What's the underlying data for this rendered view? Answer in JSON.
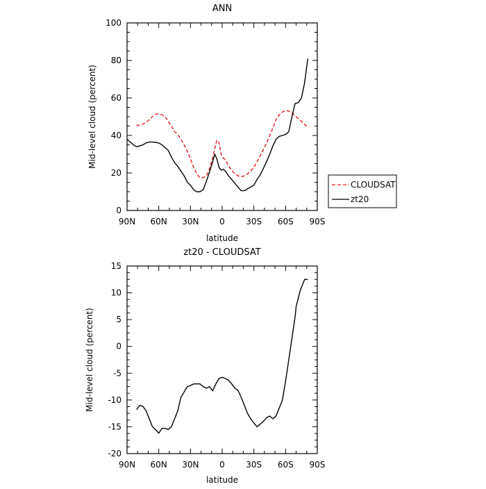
{
  "chart_data": [
    {
      "type": "line",
      "title": "ANN",
      "xlabel": "latitude",
      "ylabel": "Mid-level cloud (percent)",
      "xlim": [
        90,
        -90
      ],
      "ylim": [
        0,
        100
      ],
      "x_ticks": [
        90,
        60,
        30,
        0,
        -30,
        -60,
        -90
      ],
      "x_tick_labels": [
        "90N",
        "60N",
        "30N",
        "0",
        "30S",
        "60S",
        "90S"
      ],
      "y_ticks": [
        0,
        20,
        40,
        60,
        80,
        100
      ],
      "y_tick_labels": [
        "0",
        "20",
        "40",
        "60",
        "80",
        "100"
      ],
      "legend": {
        "placement": "right",
        "entries": [
          {
            "label": "CLOUDSAT",
            "color": "#e31a1c",
            "dash": "dashed"
          },
          {
            "label": "zt20",
            "color": "#000000",
            "dash": "solid"
          }
        ]
      },
      "series": [
        {
          "name": "CLOUDSAT",
          "color": "#e31a1c",
          "dash": "dashed",
          "x": [
            81,
            78,
            75,
            72,
            69,
            66,
            63,
            60,
            57,
            54,
            51,
            48,
            45,
            42,
            39,
            36,
            33,
            30,
            27,
            24,
            21,
            18,
            15,
            12,
            9,
            7,
            5,
            3,
            1,
            -1,
            -3,
            -5,
            -7,
            -9,
            -12,
            -15,
            -18,
            -21,
            -24,
            -27,
            -30,
            -33,
            -36,
            -39,
            -42,
            -45,
            -48,
            -51,
            -54,
            -57,
            -60,
            -63,
            -66,
            -69,
            -72,
            -75,
            -78,
            -81
          ],
          "y": [
            45.5,
            45.3,
            46,
            47,
            48.5,
            50,
            51.3,
            51.5,
            51,
            50,
            47.5,
            45,
            42,
            40.5,
            38,
            35,
            31.5,
            27.5,
            23,
            19.5,
            17.5,
            17.5,
            18.5,
            22,
            28,
            33,
            37.5,
            36.5,
            30,
            28,
            27,
            25,
            23,
            21.5,
            19.5,
            18.5,
            18,
            18.5,
            19.5,
            21,
            23,
            26,
            29,
            32.5,
            36,
            40,
            44,
            48.5,
            51,
            52.5,
            53.3,
            53,
            52,
            50.5,
            49,
            47.5,
            46,
            44
          ]
        },
        {
          "name": "zt20",
          "color": "#000000",
          "dash": "solid",
          "x": [
            90,
            87,
            84,
            81,
            78,
            75,
            72,
            69,
            66,
            63,
            60,
            57,
            54,
            51,
            48,
            45,
            42,
            39,
            36,
            33,
            30,
            27,
            24,
            21,
            18,
            15,
            12,
            9,
            7,
            5,
            3,
            1,
            -1,
            -3,
            -6,
            -9,
            -12,
            -15,
            -18,
            -21,
            -24,
            -27,
            -30,
            -33,
            -36,
            -39,
            -42,
            -45,
            -48,
            -51,
            -54,
            -57,
            -60,
            -63,
            -66,
            -69,
            -72,
            -75,
            -78,
            -81
          ],
          "y": [
            38,
            36.5,
            35,
            34,
            34.5,
            35,
            36,
            36.5,
            36.5,
            36.3,
            36,
            35,
            33.5,
            32,
            28.5,
            25.5,
            23.5,
            21,
            18.5,
            15,
            13.5,
            11,
            10,
            10,
            11,
            15.5,
            20.5,
            26,
            30,
            27.5,
            23,
            21.5,
            22,
            21,
            18.5,
            16.5,
            14.5,
            12.5,
            10.5,
            10.5,
            11.5,
            12.5,
            13.5,
            16.5,
            19,
            22.5,
            26,
            30,
            34.5,
            38,
            39.5,
            40,
            40.5,
            42,
            50,
            57,
            57.5,
            60,
            68,
            81
          ]
        }
      ]
    },
    {
      "type": "line",
      "title": "zt20 - CLOUDSAT",
      "xlabel": "latitude",
      "ylabel": "Mid-level cloud (percent)",
      "xlim": [
        90,
        -90
      ],
      "ylim": [
        -20,
        15
      ],
      "x_ticks": [
        90,
        60,
        30,
        0,
        -30,
        -60,
        -90
      ],
      "x_tick_labels": [
        "90N",
        "60N",
        "30N",
        "0",
        "30S",
        "60S",
        "90S"
      ],
      "y_ticks": [
        -20,
        -15,
        -10,
        -5,
        0,
        5,
        10,
        15
      ],
      "y_tick_labels": [
        "-20",
        "-15",
        "-10",
        "-5",
        "0",
        "5",
        "10",
        "15"
      ],
      "series": [
        {
          "color": "#000000",
          "dash": "solid",
          "x": [
            81,
            78,
            75,
            72,
            69,
            66,
            63,
            60,
            57,
            54,
            51,
            48,
            45,
            42,
            39,
            36,
            33,
            30,
            27,
            24,
            21,
            18,
            15,
            12,
            9,
            6,
            3,
            1,
            -1,
            -3,
            -6,
            -9,
            -12,
            -15,
            -18,
            -21,
            -24,
            -27,
            -30,
            -33,
            -36,
            -39,
            -42,
            -45,
            -48,
            -51,
            -54,
            -57,
            -60,
            -63,
            -66,
            -69,
            -70,
            -72,
            -74,
            -76,
            -78,
            -80,
            -81
          ],
          "y": [
            -11.8,
            -11,
            -11.2,
            -12,
            -13.5,
            -15,
            -15.5,
            -16.2,
            -15.3,
            -15.3,
            -15.5,
            -15,
            -13.5,
            -12,
            -9.5,
            -8.5,
            -7.5,
            -7.3,
            -7,
            -7,
            -7,
            -7.5,
            -7.8,
            -7.5,
            -8.3,
            -7,
            -6,
            -5.8,
            -5.8,
            -6,
            -6.3,
            -7,
            -7.8,
            -8.2,
            -9.5,
            -11,
            -12.5,
            -13.5,
            -14.3,
            -15,
            -14.5,
            -14,
            -13.3,
            -13,
            -13.5,
            -13,
            -11.5,
            -10,
            -6.5,
            -2.5,
            1.5,
            5.5,
            7.5,
            9,
            10.5,
            11.5,
            12.5,
            12.5,
            12.5
          ]
        }
      ]
    }
  ]
}
